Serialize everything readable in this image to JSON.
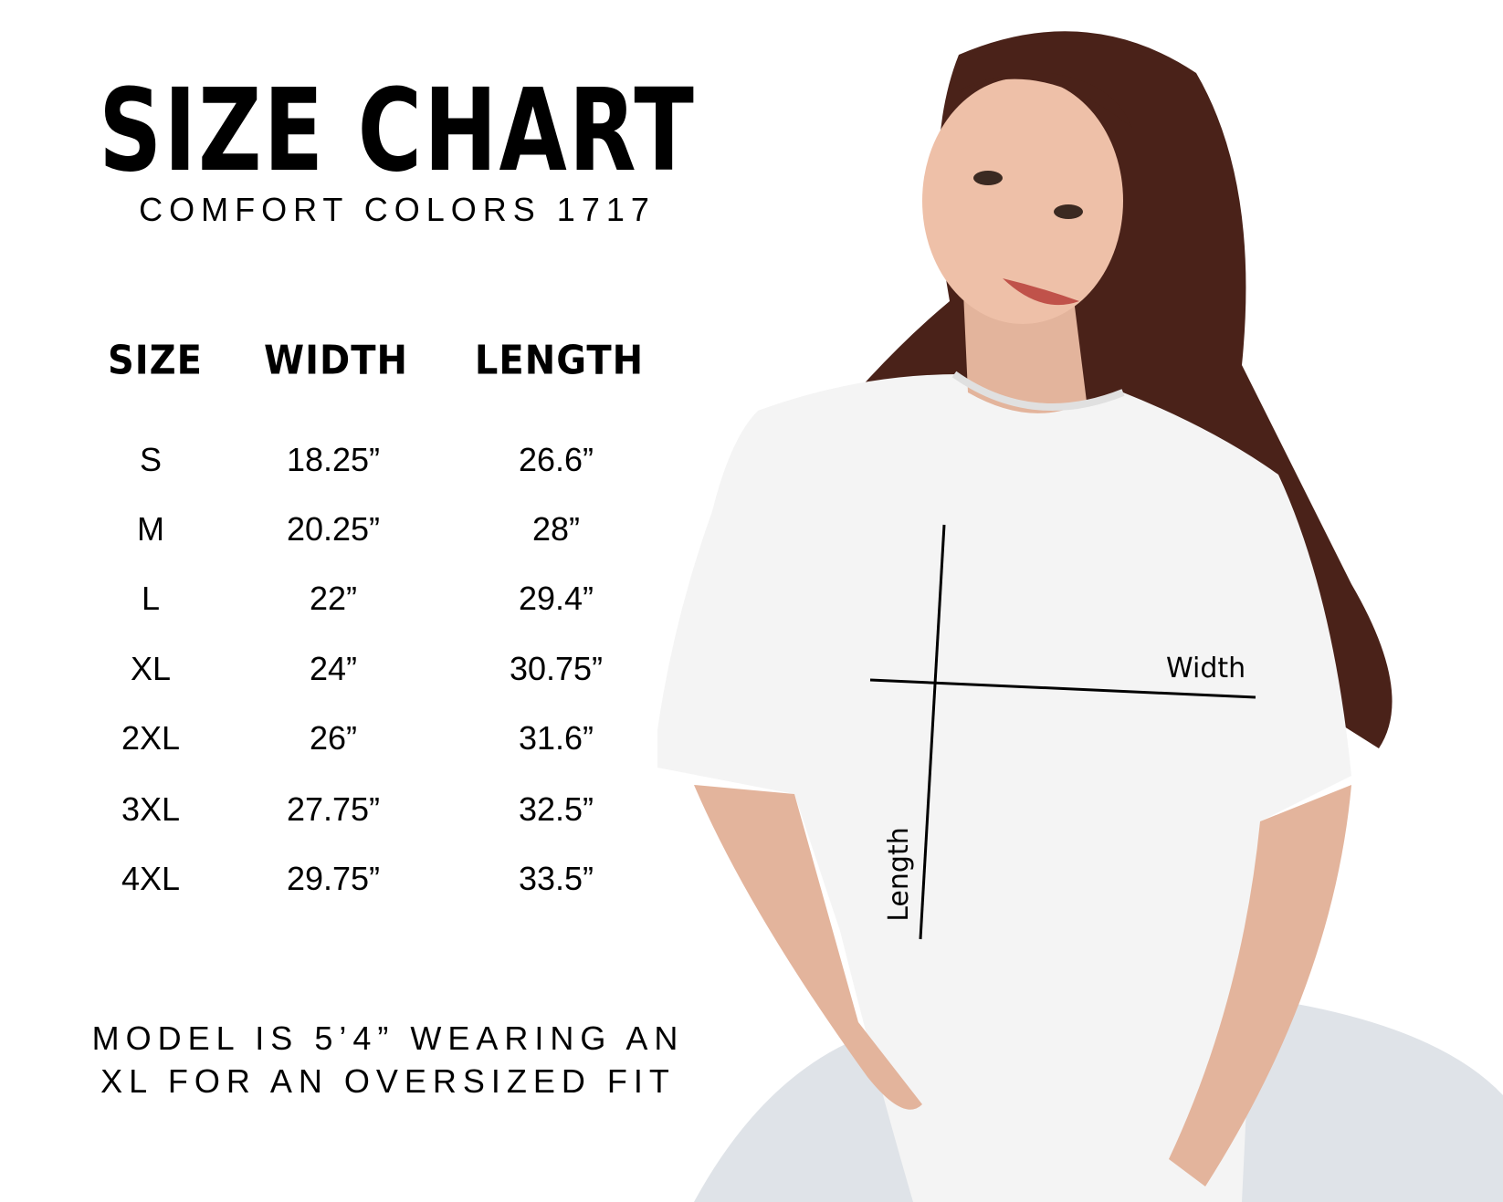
{
  "title": "SIZE CHART",
  "subtitle": "COMFORT COLORS 1717",
  "table": {
    "headers": [
      "SIZE",
      "WIDTH",
      "LENGTH"
    ],
    "rows": [
      {
        "size": "S",
        "width": "18.25”",
        "length": "26.6”"
      },
      {
        "size": "M",
        "width": "20.25”",
        "length": "28”"
      },
      {
        "size": "L",
        "width": "22”",
        "length": "29.4”"
      },
      {
        "size": "XL",
        "width": "24”",
        "length": "30.75”"
      },
      {
        "size": "2XL",
        "width": "26”",
        "length": "31.6”"
      },
      {
        "size": "3XL",
        "width": "27.75”",
        "length": "32.5”"
      },
      {
        "size": "4XL",
        "width": "29.75”",
        "length": "33.5”"
      }
    ]
  },
  "footer": {
    "line1": "MODEL IS 5’4” WEARING AN",
    "line2": "XL FOR AN OVERSIZED FIT"
  },
  "photo": {
    "width_label": "Width",
    "length_label": "Length"
  },
  "colors": {
    "text": "#000000",
    "background": "#ffffff",
    "hair": "#4a2219",
    "shirt": "#f4f4f4"
  }
}
